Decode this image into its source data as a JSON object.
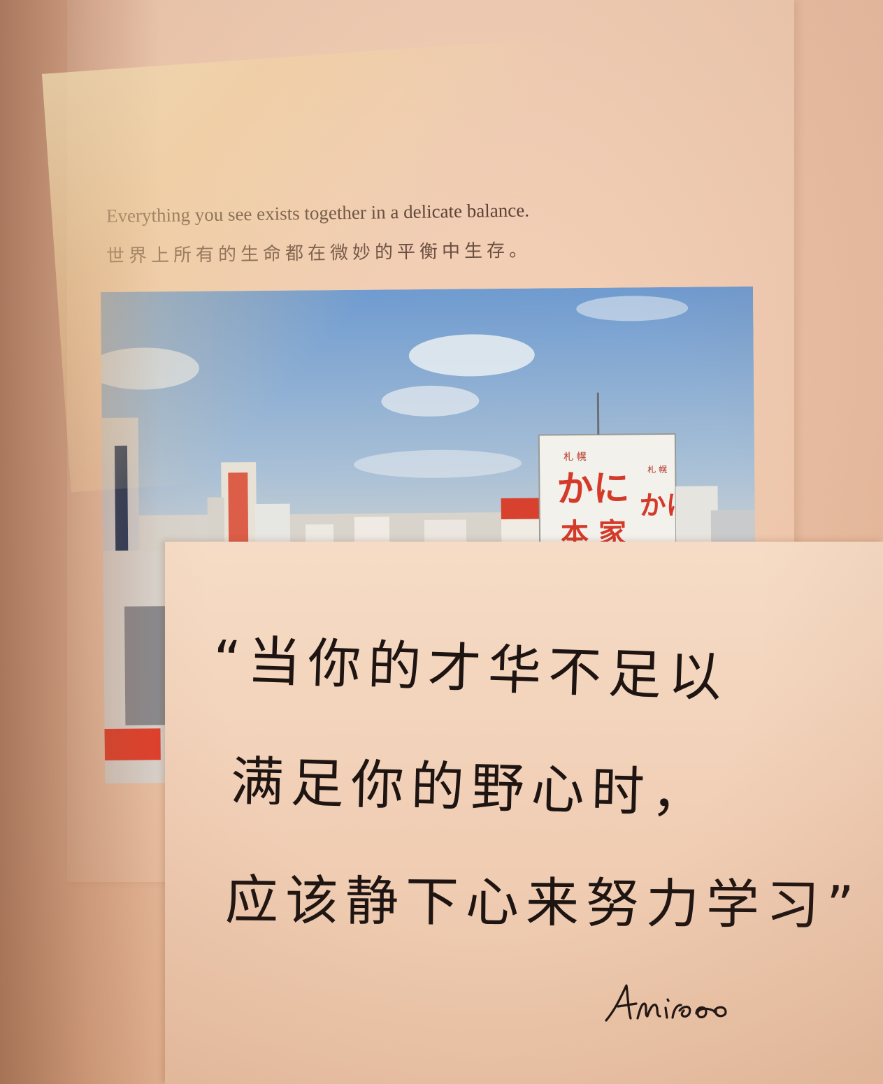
{
  "page": {
    "caption_en": "Everything you see exists together in a delicate balance.",
    "caption_zh": "世界上所有的生命都在微妙的平衡中生存。"
  },
  "photo": {
    "sign_left_big": "かに",
    "sign_left_small": "札 幌",
    "sign_right_big": "かに",
    "sign_right_small": "札 幌",
    "sign_bottom": "本 家"
  },
  "note": {
    "line1": "“当你的才华不足以",
    "line2": "满足你的野心时，",
    "line3": "应该静下心来努力学习”",
    "signature": "Amiao"
  },
  "colors": {
    "sky_top": "#6f9bd0",
    "sky_bottom": "#b9c9d6",
    "ink": "#1e1512",
    "sign_red": "#d43a2a"
  }
}
